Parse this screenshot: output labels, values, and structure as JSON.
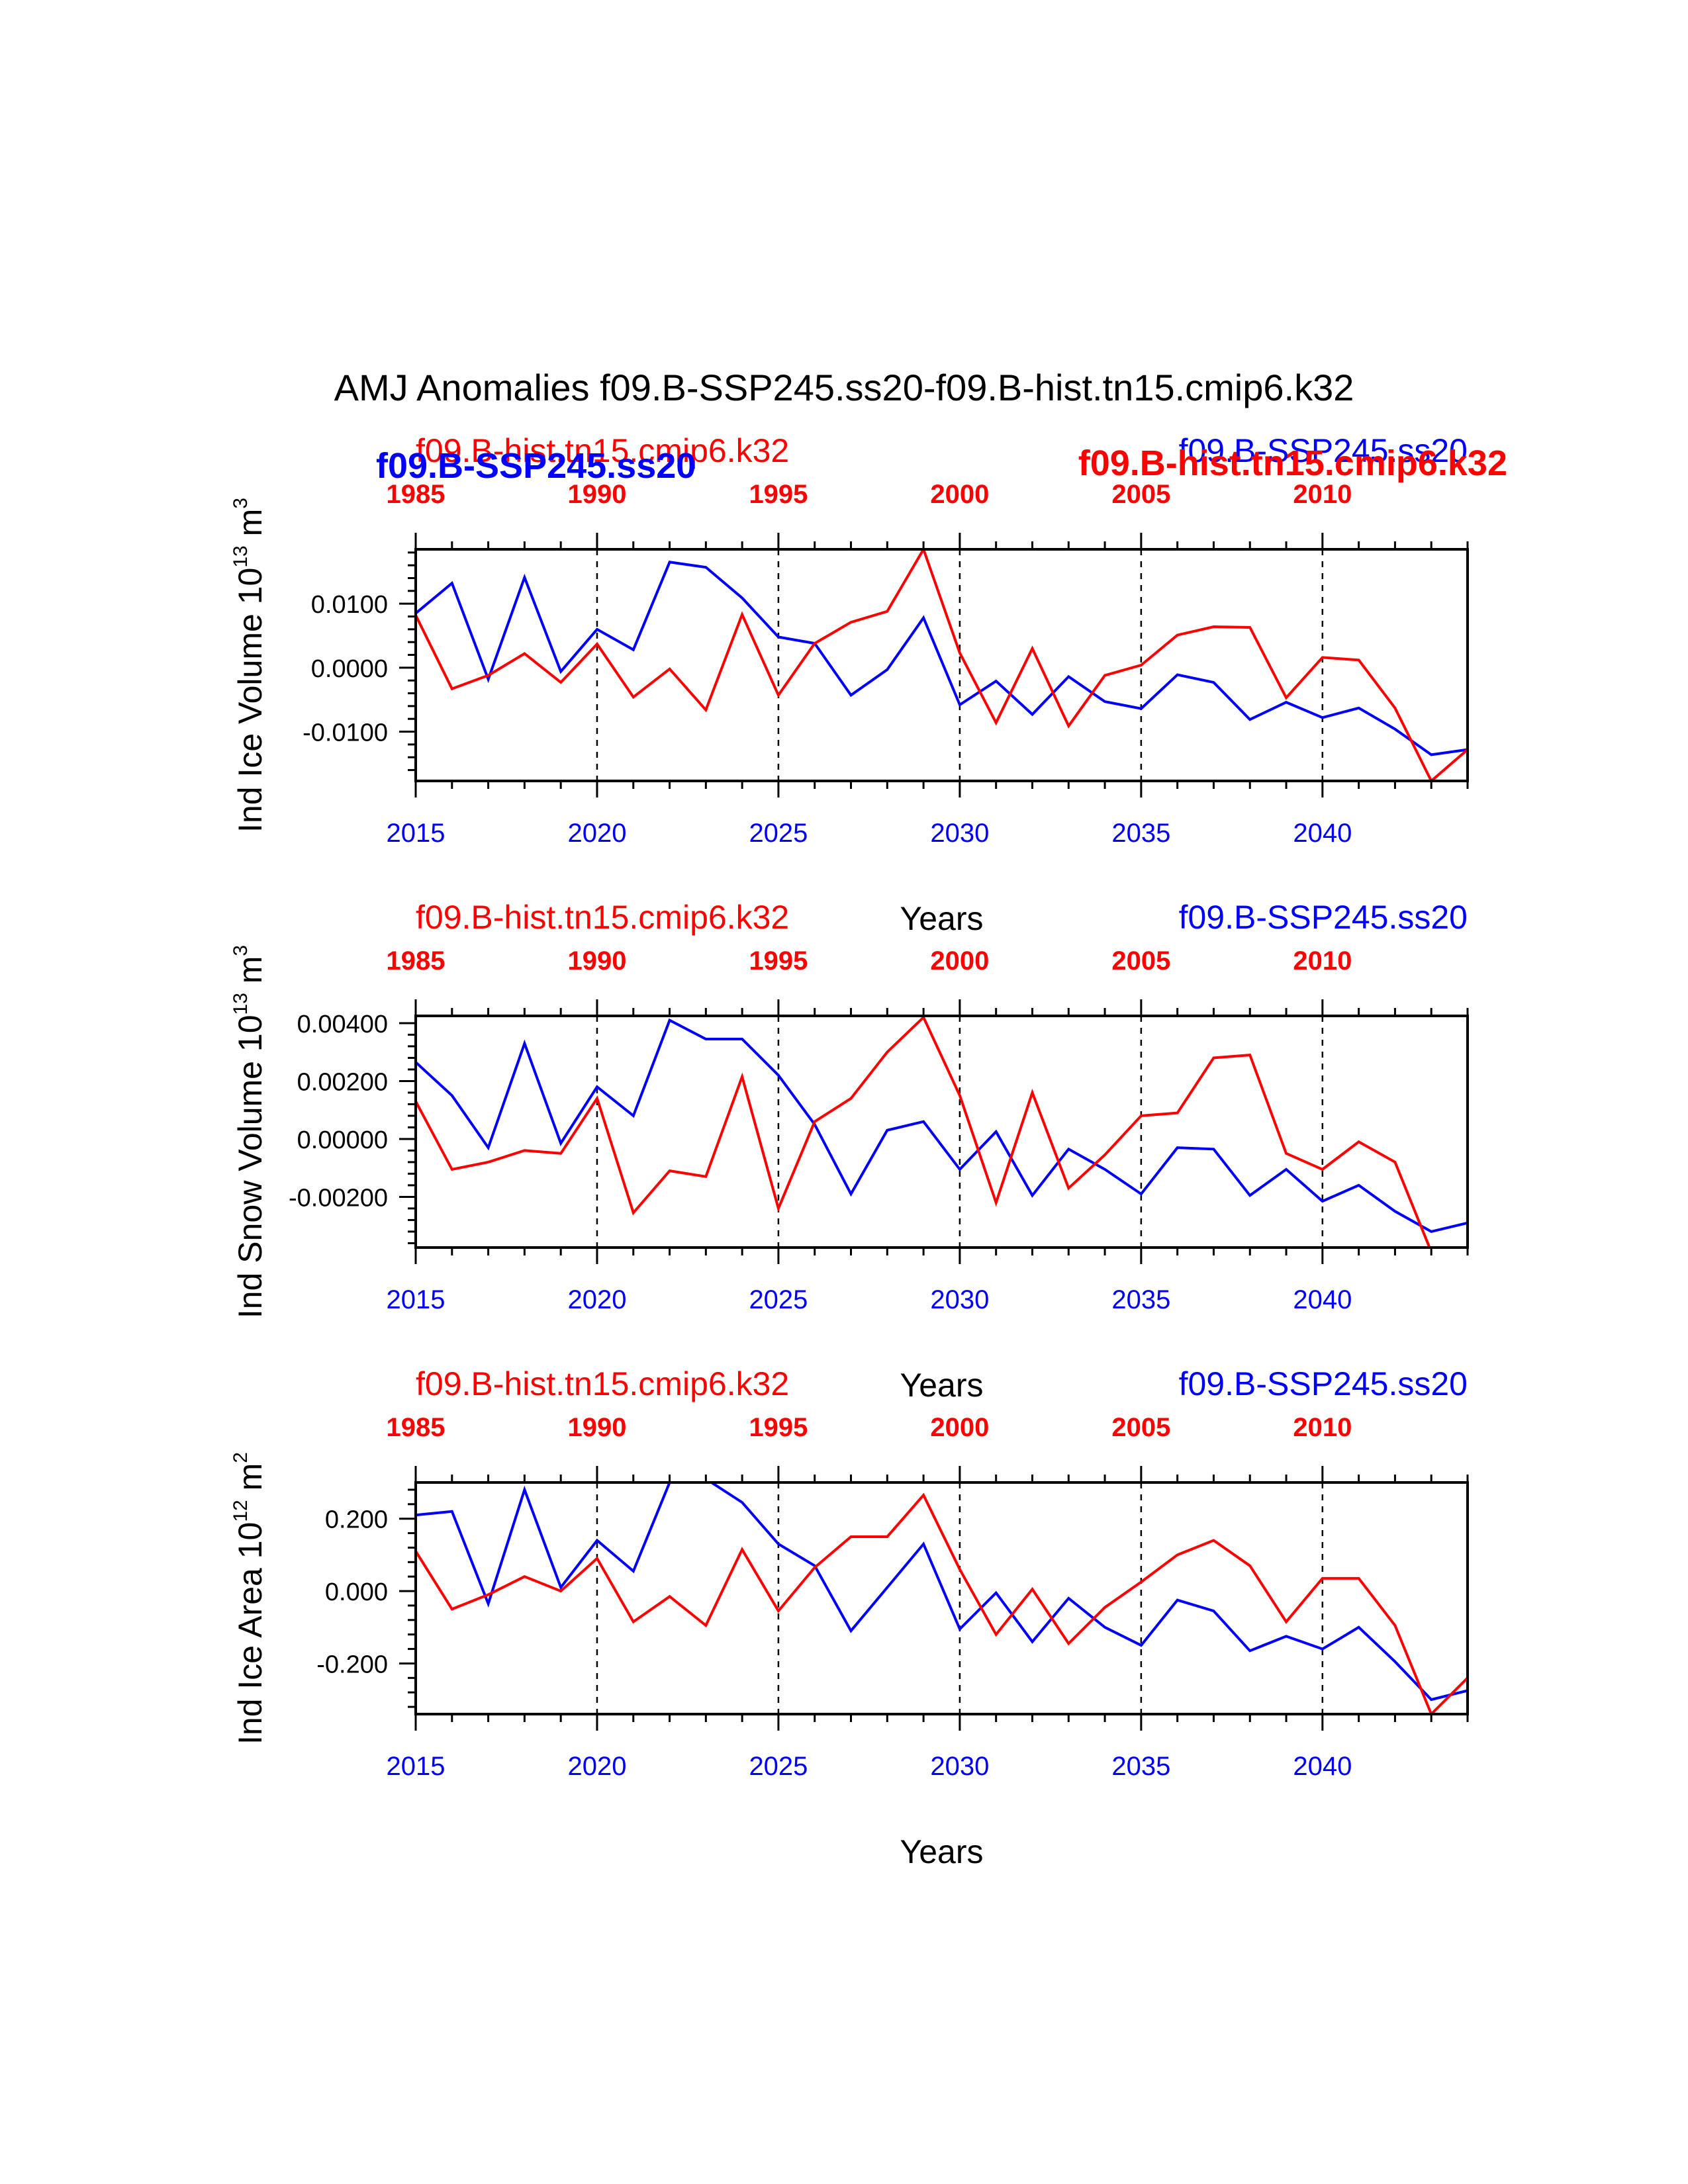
{
  "title": "AMJ Anomalies f09.B-SSP245.ss20-f09.B-hist.tn15.cmip6.k32",
  "colors": {
    "ssp": "#0000ff",
    "hist": "#ff0000",
    "axis": "#000000"
  },
  "chart_data": [
    {
      "type": "line",
      "ylabel": "Ind Ice Volume 10",
      "ylabel_exp": "13",
      "ylabel_unit": " m",
      "ylabel_unit_exp": "3",
      "xlabel": "Years",
      "top_label_left": "f09.B-hist.tn15.cmip6.k32",
      "top_label_right": "f09.B-SSP245.ss20",
      "overlay_bold_left": "f09.B-SSP245.ss20",
      "overlay_bold_right": "f09.B-hist.tn15.cmip6.k32",
      "x_bottom": {
        "range": [
          2015,
          2044
        ],
        "ticks": [
          "2015",
          "2020",
          "2025",
          "2030",
          "2035",
          "2040"
        ]
      },
      "x_top": {
        "range": [
          1985,
          2014
        ],
        "ticks": [
          "1985",
          "1990",
          "1995",
          "2000",
          "2005",
          "2010"
        ]
      },
      "ylim": [
        -0.0177,
        0.0185
      ],
      "yticks": [
        -0.01,
        0.0,
        0.01
      ],
      "ytick_labels": [
        "-0.0100",
        "0.0000",
        "0.0100"
      ],
      "series": [
        {
          "name": "f09.B-SSP245.ss20",
          "color": "#0000ff",
          "x": [
            2015,
            2016,
            2017,
            2018,
            2019,
            2020,
            2021,
            2022,
            2023,
            2024,
            2025,
            2026,
            2027,
            2028,
            2029,
            2030,
            2031,
            2032,
            2033,
            2034,
            2035,
            2036,
            2037,
            2038,
            2039,
            2040,
            2041,
            2042,
            2043,
            2044
          ],
          "values": [
            0.0085,
            0.0132,
            -0.0018,
            0.0141,
            -0.0006,
            0.006,
            0.0028,
            0.0165,
            0.0157,
            0.0109,
            0.0048,
            0.0038,
            -0.0043,
            -0.0003,
            0.0078,
            -0.0058,
            -0.0021,
            -0.0073,
            -0.0014,
            -0.0053,
            -0.0064,
            -0.0011,
            -0.0023,
            -0.0081,
            -0.0054,
            -0.0078,
            -0.0063,
            -0.0096,
            -0.0136,
            -0.0128
          ]
        },
        {
          "name": "f09.B-hist.tn15.cmip6.k32",
          "color": "#ff0000",
          "x": [
            1985,
            1986,
            1987,
            1988,
            1989,
            1990,
            1991,
            1992,
            1993,
            1994,
            1995,
            1996,
            1997,
            1998,
            1999,
            2000,
            2001,
            2002,
            2003,
            2004,
            2005,
            2006,
            2007,
            2008,
            2009,
            2010,
            2011,
            2012,
            2013,
            2014
          ],
          "values": [
            0.0082,
            -0.0033,
            -0.0012,
            0.0022,
            -0.0023,
            0.0037,
            -0.0046,
            -0.0002,
            -0.0066,
            0.0083,
            -0.0043,
            0.0038,
            0.0071,
            0.0088,
            0.0185,
            0.0023,
            -0.0086,
            0.003,
            -0.0091,
            -0.0012,
            0.0004,
            0.0051,
            0.0064,
            0.0063,
            -0.0047,
            0.0016,
            0.0012,
            -0.0063,
            -0.0177,
            -0.0128
          ]
        }
      ]
    },
    {
      "type": "line",
      "ylabel": "Ind Snow Volume 10",
      "ylabel_exp": "13",
      "ylabel_unit": " m",
      "ylabel_unit_exp": "3",
      "xlabel": "Years",
      "top_label_left": "f09.B-hist.tn15.cmip6.k32",
      "top_label_right": "f09.B-SSP245.ss20",
      "x_bottom": {
        "range": [
          2015,
          2044
        ],
        "ticks": [
          "2015",
          "2020",
          "2025",
          "2030",
          "2035",
          "2040"
        ]
      },
      "x_top": {
        "range": [
          1985,
          2014
        ],
        "ticks": [
          "1985",
          "1990",
          "1995",
          "2000",
          "2005",
          "2010"
        ]
      },
      "ylim": [
        -0.00375,
        0.00425
      ],
      "yticks": [
        -0.002,
        0.0,
        0.002,
        0.004
      ],
      "ytick_labels": [
        "-0.00200",
        "0.00000",
        "0.00200",
        "0.00400"
      ],
      "series": [
        {
          "name": "f09.B-SSP245.ss20",
          "color": "#0000ff",
          "x": [
            2015,
            2016,
            2017,
            2018,
            2019,
            2020,
            2021,
            2022,
            2023,
            2024,
            2025,
            2026,
            2027,
            2028,
            2029,
            2030,
            2031,
            2032,
            2033,
            2034,
            2035,
            2036,
            2037,
            2038,
            2039,
            2040,
            2041,
            2042,
            2043,
            2044
          ],
          "values": [
            0.00265,
            0.0015,
            -0.0003,
            0.0033,
            -0.00015,
            0.0018,
            0.0008,
            0.0041,
            0.00345,
            0.00345,
            0.0022,
            0.0005,
            -0.0019,
            0.0003,
            0.0006,
            -0.00105,
            0.00025,
            -0.00195,
            -0.00035,
            -0.00105,
            -0.0019,
            -0.0003,
            -0.00035,
            -0.00195,
            -0.00105,
            -0.00215,
            -0.0016,
            -0.0025,
            -0.0032,
            -0.0029
          ]
        },
        {
          "name": "f09.B-hist.tn15.cmip6.k32",
          "color": "#ff0000",
          "x": [
            1985,
            1986,
            1987,
            1988,
            1989,
            1990,
            1991,
            1992,
            1993,
            1994,
            1995,
            1996,
            1997,
            1998,
            1999,
            2000,
            2001,
            2002,
            2003,
            2004,
            2005,
            2006,
            2007,
            2008,
            2009,
            2010,
            2011,
            2012,
            2013,
            2014
          ],
          "values": [
            0.0013,
            -0.00105,
            -0.0008,
            -0.0004,
            -0.0005,
            0.0014,
            -0.00255,
            -0.0011,
            -0.0013,
            0.00215,
            -0.0024,
            0.0006,
            0.0014,
            0.003,
            0.0042,
            0.0015,
            -0.0022,
            0.0016,
            -0.0017,
            -0.00055,
            0.0008,
            0.0009,
            0.0028,
            0.0029,
            -0.0005,
            -0.00105,
            -0.0001,
            -0.0008,
            -0.0039,
            -0.0039
          ]
        }
      ]
    },
    {
      "type": "line",
      "ylabel": "Ind Ice Area 10",
      "ylabel_exp": "12",
      "ylabel_unit": " m",
      "ylabel_unit_exp": "2",
      "xlabel": "Years",
      "top_label_left": "f09.B-hist.tn15.cmip6.k32",
      "top_label_right": "f09.B-SSP245.ss20",
      "x_bottom": {
        "range": [
          2015,
          2044
        ],
        "ticks": [
          "2015",
          "2020",
          "2025",
          "2030",
          "2035",
          "2040"
        ]
      },
      "x_top": {
        "range": [
          1985,
          2014
        ],
        "ticks": [
          "1985",
          "1990",
          "1995",
          "2000",
          "2005",
          "2010"
        ]
      },
      "ylim": [
        -0.34,
        0.3
      ],
      "yticks": [
        -0.2,
        0.0,
        0.2
      ],
      "ytick_labels": [
        "-0.200",
        "0.000",
        "0.200"
      ],
      "series": [
        {
          "name": "f09.B-SSP245.ss20",
          "color": "#0000ff",
          "x": [
            2015,
            2016,
            2017,
            2018,
            2019,
            2020,
            2021,
            2022,
            2023,
            2024,
            2025,
            2026,
            2027,
            2028,
            2029,
            2030,
            2031,
            2032,
            2033,
            2034,
            2035,
            2036,
            2037,
            2038,
            2039,
            2040,
            2041,
            2042,
            2043,
            2044
          ],
          "values": [
            0.21,
            0.22,
            -0.035,
            0.28,
            0.01,
            0.14,
            0.055,
            0.3,
            0.31,
            0.245,
            0.13,
            0.07,
            -0.11,
            0.01,
            0.13,
            -0.105,
            -0.005,
            -0.14,
            -0.02,
            -0.1,
            -0.15,
            -0.025,
            -0.055,
            -0.165,
            -0.125,
            -0.16,
            -0.1,
            -0.195,
            -0.3,
            -0.275
          ]
        },
        {
          "name": "f09.B-hist.tn15.cmip6.k32",
          "color": "#ff0000",
          "x": [
            1985,
            1986,
            1987,
            1988,
            1989,
            1990,
            1991,
            1992,
            1993,
            1994,
            1995,
            1996,
            1997,
            1998,
            1999,
            2000,
            2001,
            2002,
            2003,
            2004,
            2005,
            2006,
            2007,
            2008,
            2009,
            2010,
            2011,
            2012,
            2013,
            2014
          ],
          "values": [
            0.11,
            -0.05,
            -0.01,
            0.04,
            0.0,
            0.09,
            -0.085,
            -0.015,
            -0.095,
            0.115,
            -0.055,
            0.065,
            0.15,
            0.15,
            0.265,
            0.06,
            -0.12,
            0.005,
            -0.145,
            -0.045,
            0.025,
            0.1,
            0.14,
            0.07,
            -0.085,
            0.035,
            0.035,
            -0.095,
            -0.34,
            -0.24
          ]
        }
      ]
    }
  ]
}
